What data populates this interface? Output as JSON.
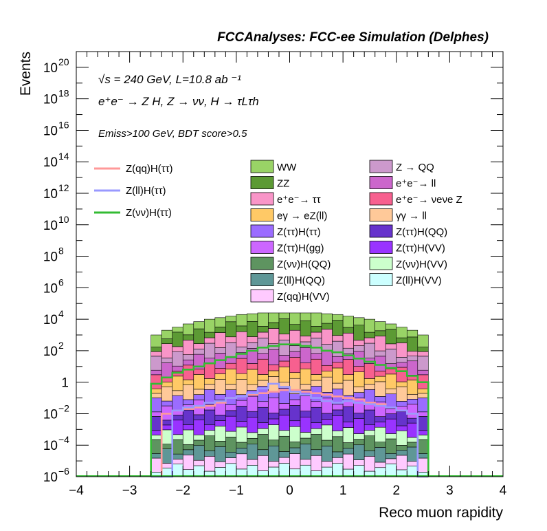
{
  "chart_data": {
    "type": "bar",
    "stacked": true,
    "title": "FCCAnalyses: FCC-ee Simulation (Delphes)",
    "xlabel": "Reco muon rapidity",
    "ylabel": "Events",
    "xlim": [
      -4,
      4
    ],
    "ylim": [
      1e-06,
      1e+21
    ],
    "ylog": true,
    "grid": false,
    "legend_position": "top",
    "annotations": {
      "energy": "√s = 240 GeV, L=10.8 ab ⁻¹",
      "process": "e⁺e⁻ → Z H, Z → νν, H → τLτh",
      "cuts": "Emiss>100 GeV, BDT score>0.5"
    },
    "x_ticks": [
      "−4",
      "−3",
      "−2",
      "−1",
      "0",
      "1",
      "2",
      "3",
      "4"
    ],
    "y_ticks": [
      {
        "exp": 20,
        "label": "10",
        "sup": "20"
      },
      {
        "exp": 18,
        "label": "10",
        "sup": "18"
      },
      {
        "exp": 16,
        "label": "10",
        "sup": "16"
      },
      {
        "exp": 14,
        "label": "10",
        "sup": "14"
      },
      {
        "exp": 12,
        "label": "10",
        "sup": "12"
      },
      {
        "exp": 10,
        "label": "10",
        "sup": "10"
      },
      {
        "exp": 8,
        "label": "10",
        "sup": "8"
      },
      {
        "exp": 6,
        "label": "10",
        "sup": "6"
      },
      {
        "exp": 4,
        "label": "10",
        "sup": "4"
      },
      {
        "exp": 2,
        "label": "10",
        "sup": "2"
      },
      {
        "exp": 0,
        "label": "1",
        "sup": ""
      },
      {
        "exp": -2,
        "label": "10",
        "sup": "−2"
      },
      {
        "exp": -4,
        "label": "10",
        "sup": "−4"
      },
      {
        "exp": -6,
        "label": "10",
        "sup": "−6"
      }
    ],
    "bin_edges": [
      -2.6,
      -2.4,
      -2.2,
      -2.0,
      -1.8,
      -1.6,
      -1.4,
      -1.2,
      -1.0,
      -0.8,
      -0.6,
      -0.4,
      -0.2,
      0.0,
      0.2,
      0.4,
      0.6,
      0.8,
      1.0,
      1.2,
      1.4,
      1.6,
      1.8,
      2.0,
      2.2,
      2.4,
      2.6
    ],
    "stack_top_log10": [
      3.0,
      3.3,
      3.5,
      3.7,
      3.85,
      4.0,
      4.1,
      4.2,
      4.3,
      4.35,
      4.4,
      4.4,
      4.4,
      4.4,
      4.4,
      4.4,
      4.35,
      4.3,
      4.2,
      4.1,
      4.0,
      3.85,
      3.7,
      3.5,
      3.3,
      3.0
    ],
    "series": [
      {
        "name": "WW",
        "color": "#99d366"
      },
      {
        "name": "ZZ",
        "color": "#5c9a34"
      },
      {
        "name": "e⁺e⁻→ ττ",
        "color": "#f995c8"
      },
      {
        "name": "eγ → eZ(ll)",
        "color": "#ffc966"
      },
      {
        "name": "Z(ττ)H(ττ)",
        "color": "#9b6cff"
      },
      {
        "name": "Z(ττ)H(gg)",
        "color": "#cc66ff"
      },
      {
        "name": "Z(νν)H(QQ)",
        "color": "#5e9460"
      },
      {
        "name": "Z(ll)H(QQ)",
        "color": "#5f9797"
      },
      {
        "name": "Z(qq)H(VV)",
        "color": "#ffcaff"
      },
      {
        "name": "Z → QQ",
        "color": "#cc99cc"
      },
      {
        "name": "e⁺e⁻→ ll",
        "color": "#cc66cc"
      },
      {
        "name": "e⁺e⁻→ νeνe Z",
        "color": "#f7608f"
      },
      {
        "name": "γγ → ll",
        "color": "#ffc999"
      },
      {
        "name": "Z(ττ)H(QQ)",
        "color": "#6633cc"
      },
      {
        "name": "Z(ττ)H(VV)",
        "color": "#9933ff"
      },
      {
        "name": "Z(νν)H(VV)",
        "color": "#ccffcc"
      },
      {
        "name": "Z(ll)H(VV)",
        "color": "#ccffff"
      }
    ],
    "signal_series": [
      {
        "name": "Z(qq)H(ττ)",
        "color": "#ff9999",
        "values_log10": [
          -6,
          -2.0,
          -1.8,
          -1.7,
          -1.6,
          -1.5,
          -1.3,
          -1.0,
          -0.9,
          -0.8,
          -0.7,
          -0.6,
          -0.5,
          -0.5,
          -0.6,
          -0.7,
          -0.8,
          -0.9,
          -1.0,
          -1.1,
          -1.3,
          -1.4,
          -1.6,
          -1.8,
          -2.0,
          -6
        ]
      },
      {
        "name": "Z(ll)H(ττ)",
        "color": "#9999ff",
        "values_log10": [
          -6,
          -6,
          -1.8,
          -1.6,
          -1.5,
          -1.3,
          -1.2,
          -1.0,
          -0.9,
          -0.7,
          -0.4,
          -0.1,
          -0.3,
          -0.6,
          -0.8,
          -1.0,
          -1.2,
          -1.3,
          -1.2,
          -1.3,
          -1.4,
          -1.5,
          -1.6,
          -1.8,
          -2.0,
          -6
        ]
      },
      {
        "name": "Z(νν)H(ττ)",
        "color": "#33bb33",
        "values_log10": [
          -0.1,
          0.3,
          0.6,
          0.8,
          1.0,
          1.2,
          1.4,
          1.6,
          1.8,
          2.0,
          2.2,
          2.3,
          2.4,
          2.4,
          2.3,
          2.2,
          2.0,
          1.9,
          1.7,
          1.5,
          1.3,
          1.1,
          0.9,
          0.7,
          0.4,
          0.0
        ]
      }
    ]
  }
}
